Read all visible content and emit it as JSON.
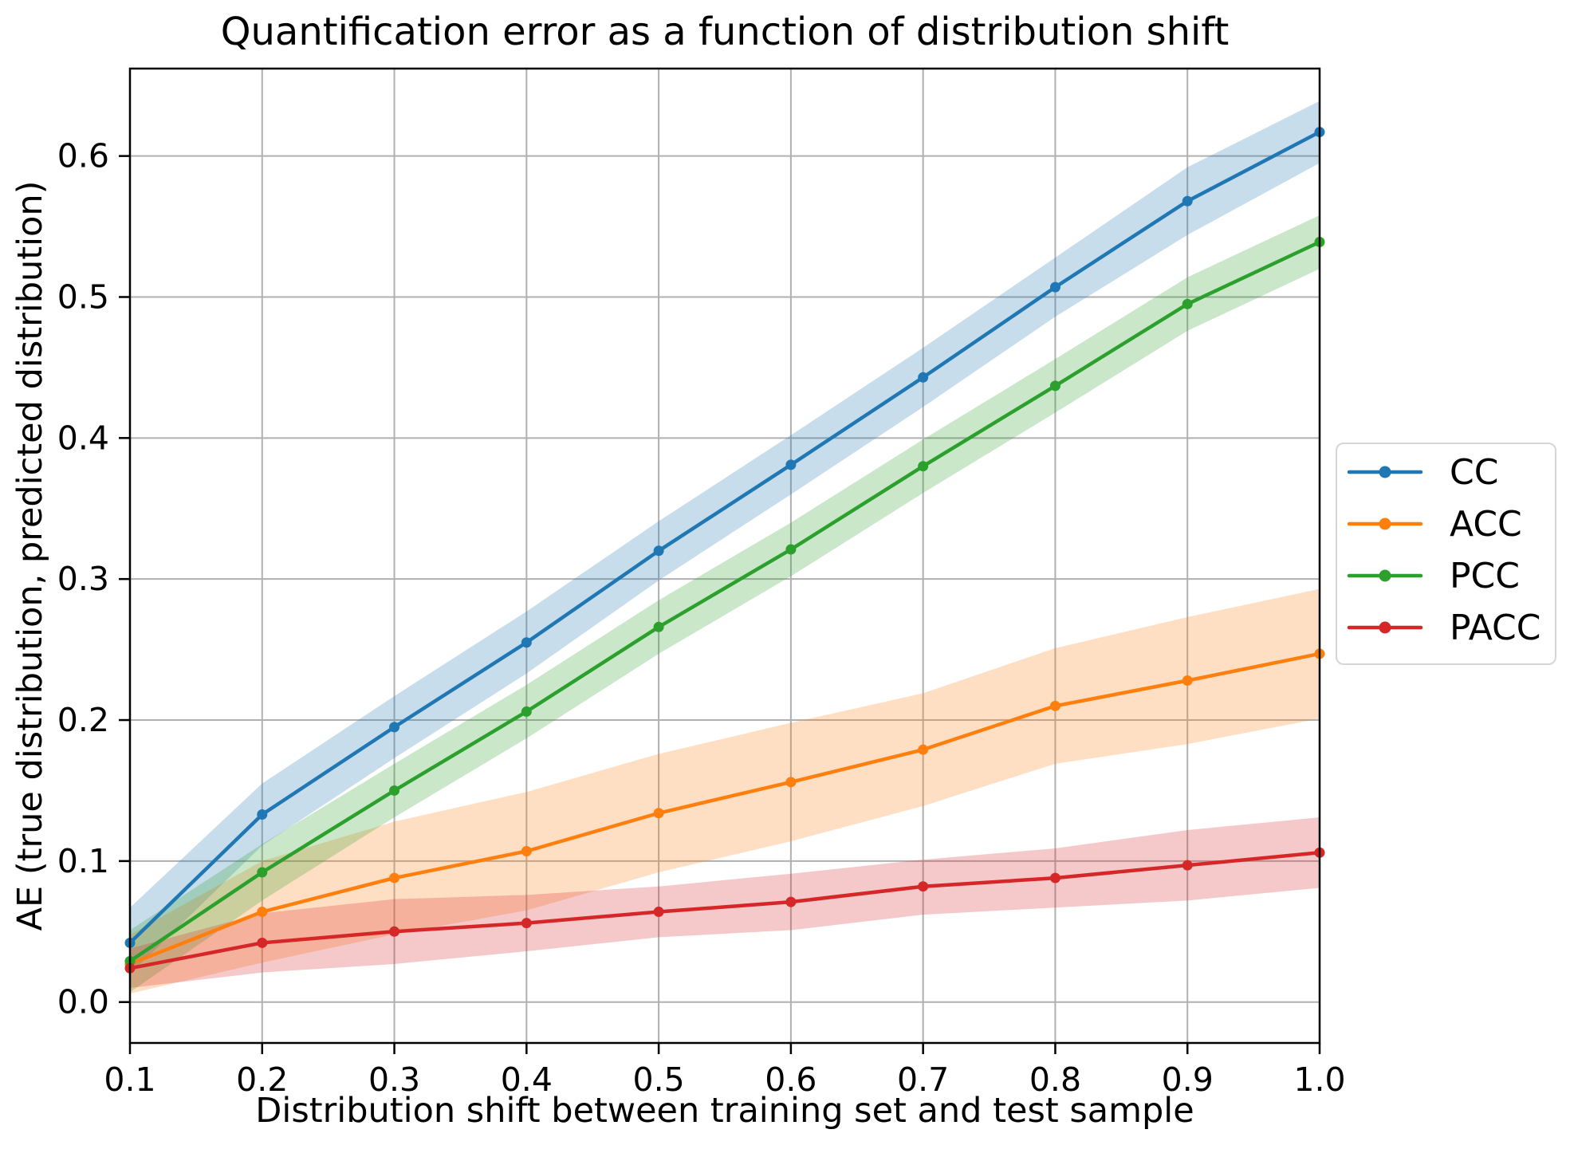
{
  "chart_data": {
    "type": "line",
    "title": "Quantification error as a function of distribution shift",
    "xlabel": "Distribution shift between training set and test sample",
    "ylabel": "AE (true distribution, predicted distribution)",
    "x": [
      0.1,
      0.2,
      0.3,
      0.4,
      0.5,
      0.6,
      0.7,
      0.8,
      0.9,
      1.0
    ],
    "xlim": [
      0.1,
      1.0
    ],
    "ylim": [
      -0.029,
      0.662
    ],
    "xticks": [
      "0.1",
      "0.2",
      "0.3",
      "0.4",
      "0.5",
      "0.6",
      "0.7",
      "0.8",
      "0.9",
      "1.0"
    ],
    "yticks": [
      "0.0",
      "0.1",
      "0.2",
      "0.3",
      "0.4",
      "0.5",
      "0.6"
    ],
    "grid": true,
    "marker": "circle",
    "band_alpha": 0.25,
    "legend_position": "outside-center-right",
    "colors": {
      "grid": "#b0b0b0",
      "spine": "#000000",
      "legend_border": "#d5d5d5",
      "background": "#ffffff"
    },
    "series": [
      {
        "name": "CC",
        "color": "#1f77b4",
        "values": [
          0.042,
          0.133,
          0.195,
          0.255,
          0.32,
          0.381,
          0.443,
          0.507,
          0.568,
          0.617
        ],
        "band_upper": [
          0.067,
          0.155,
          0.217,
          0.277,
          0.341,
          0.402,
          0.464,
          0.528,
          0.592,
          0.639
        ],
        "band_lower": [
          0.02,
          0.111,
          0.173,
          0.233,
          0.299,
          0.36,
          0.422,
          0.486,
          0.544,
          0.595
        ]
      },
      {
        "name": "ACC",
        "color": "#ff7f0e",
        "values": [
          0.027,
          0.064,
          0.088,
          0.107,
          0.134,
          0.156,
          0.179,
          0.21,
          0.228,
          0.247
        ],
        "band_upper": [
          0.048,
          0.1,
          0.128,
          0.149,
          0.176,
          0.198,
          0.219,
          0.251,
          0.273,
          0.293
        ],
        "band_lower": [
          0.006,
          0.028,
          0.048,
          0.065,
          0.092,
          0.114,
          0.139,
          0.169,
          0.183,
          0.201
        ]
      },
      {
        "name": "PCC",
        "color": "#2ca02c",
        "values": [
          0.029,
          0.092,
          0.15,
          0.206,
          0.266,
          0.321,
          0.38,
          0.437,
          0.495,
          0.539
        ],
        "band_upper": [
          0.051,
          0.112,
          0.169,
          0.225,
          0.285,
          0.34,
          0.399,
          0.456,
          0.514,
          0.558
        ],
        "band_lower": [
          0.007,
          0.072,
          0.131,
          0.187,
          0.247,
          0.302,
          0.361,
          0.418,
          0.476,
          0.52
        ]
      },
      {
        "name": "PACC",
        "color": "#d62728",
        "values": [
          0.024,
          0.042,
          0.05,
          0.056,
          0.064,
          0.071,
          0.082,
          0.088,
          0.097,
          0.106
        ],
        "band_upper": [
          0.038,
          0.063,
          0.073,
          0.076,
          0.082,
          0.091,
          0.101,
          0.109,
          0.122,
          0.131
        ],
        "band_lower": [
          0.01,
          0.021,
          0.027,
          0.036,
          0.046,
          0.051,
          0.062,
          0.067,
          0.072,
          0.081
        ]
      }
    ]
  }
}
